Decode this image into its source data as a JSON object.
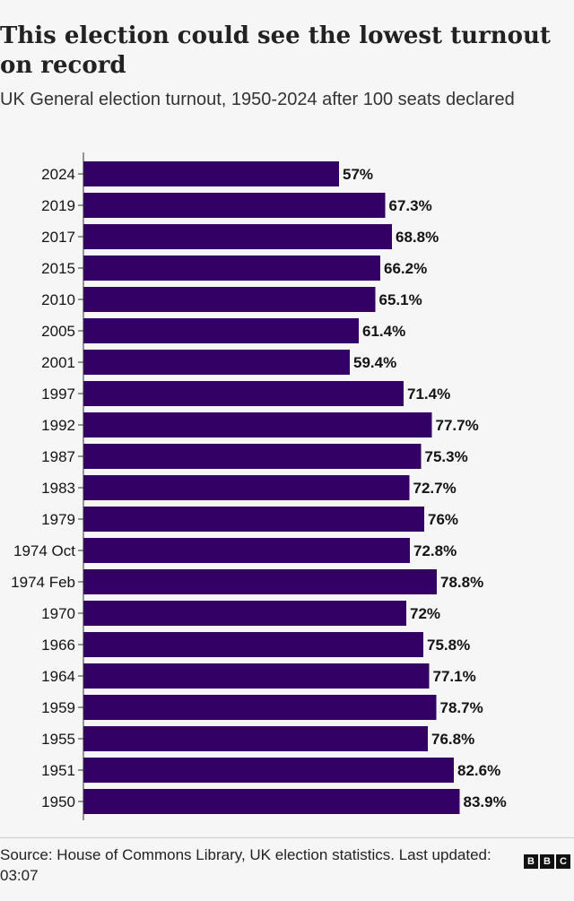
{
  "header": {
    "title": "This election could see the lowest turnout on record",
    "subtitle": "UK General election turnout, 1950-2024 after 100 seats declared"
  },
  "footer": {
    "source": "Source: House of Commons Library, UK election statistics. Last updated: 03:07",
    "logo": [
      "B",
      "B",
      "C"
    ]
  },
  "colors": {
    "bar": "#330066",
    "text": "#141414",
    "axis": "#333333"
  },
  "chart_data": {
    "type": "bar",
    "orientation": "horizontal",
    "categories": [
      "2024",
      "2019",
      "2017",
      "2015",
      "2010",
      "2005",
      "2001",
      "1997",
      "1992",
      "1987",
      "1983",
      "1979",
      "1974 Oct",
      "1974 Feb",
      "1970",
      "1966",
      "1964",
      "1959",
      "1955",
      "1951",
      "1950"
    ],
    "values": [
      57,
      67.3,
      68.8,
      66.2,
      65.1,
      61.4,
      59.4,
      71.4,
      77.7,
      75.3,
      72.7,
      76,
      72.8,
      78.8,
      72,
      75.8,
      77.1,
      78.7,
      76.8,
      82.6,
      83.9
    ],
    "value_labels": [
      "57%",
      "67.3%",
      "68.8%",
      "66.2%",
      "65.1%",
      "61.4%",
      "59.4%",
      "71.4%",
      "77.7%",
      "75.3%",
      "72.7%",
      "76%",
      "72.8%",
      "78.8%",
      "72%",
      "75.8%",
      "77.1%",
      "78.7%",
      "76.8%",
      "82.6%",
      "83.9%"
    ],
    "title": "This election could see the lowest turnout on record",
    "subtitle": "UK General election turnout, 1950-2024 after 100 seats declared",
    "xlabel": "",
    "ylabel": "",
    "xlim": [
      0,
      100
    ],
    "grid": false,
    "legend": "none"
  }
}
